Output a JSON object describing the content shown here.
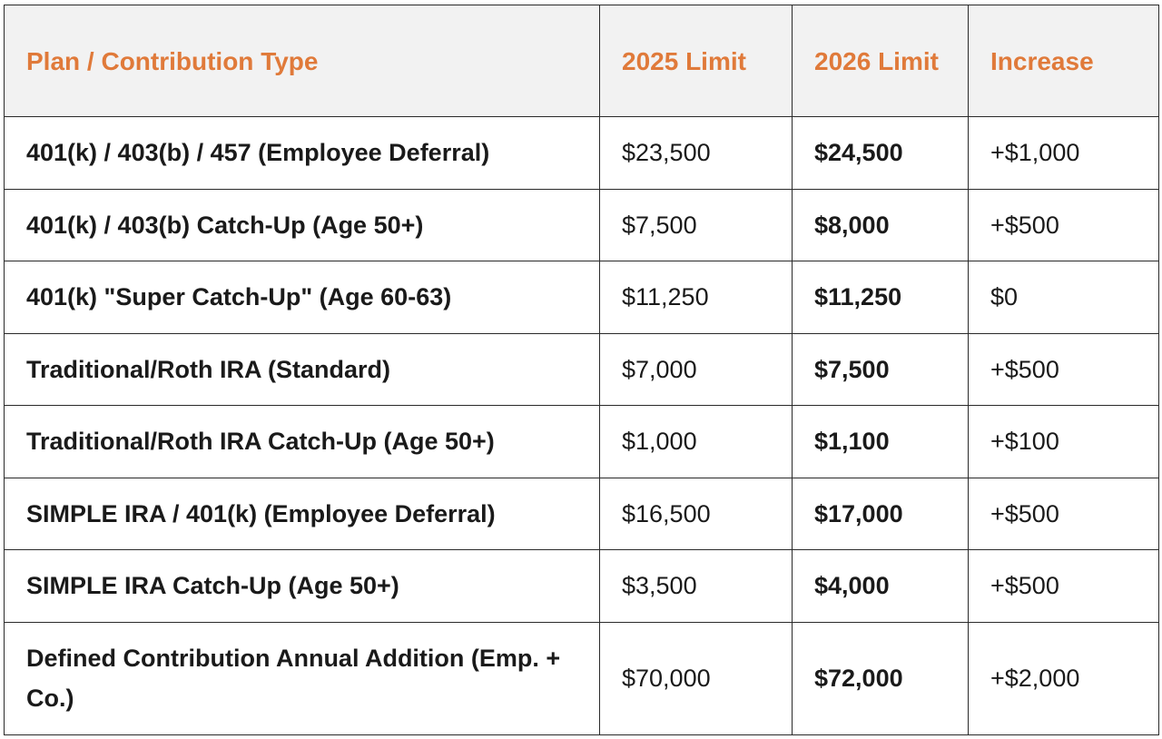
{
  "table": {
    "headers": {
      "plan": "Plan / Contribution Type",
      "limit_2025": "2025 Limit",
      "limit_2026": "2026 Limit",
      "increase": "Increase"
    },
    "rows": [
      {
        "plan": "401(k) / 403(b) / 457 (Employee Deferral)",
        "limit_2025": "$23,500",
        "limit_2026": "$24,500",
        "increase": "+$1,000"
      },
      {
        "plan": "401(k) / 403(b) Catch-Up (Age 50+)",
        "limit_2025": "$7,500",
        "limit_2026": "$8,000",
        "increase": "+$500"
      },
      {
        "plan": "401(k) \"Super Catch-Up\" (Age 60-63)",
        "limit_2025": "$11,250",
        "limit_2026": "$11,250",
        "increase": "$0"
      },
      {
        "plan": "Traditional/Roth IRA (Standard)",
        "limit_2025": "$7,000",
        "limit_2026": "$7,500",
        "increase": "+$500"
      },
      {
        "plan": "Traditional/Roth IRA Catch-Up (Age 50+)",
        "limit_2025": "$1,000",
        "limit_2026": "$1,100",
        "increase": "+$100"
      },
      {
        "plan": "SIMPLE IRA / 401(k) (Employee Deferral)",
        "limit_2025": "$16,500",
        "limit_2026": "$17,000",
        "increase": "+$500"
      },
      {
        "plan": "SIMPLE IRA Catch-Up (Age 50+)",
        "limit_2025": "$3,500",
        "limit_2026": "$4,000",
        "increase": "+$500"
      },
      {
        "plan": "Defined Contribution Annual Addition (Emp. + Co.)",
        "limit_2025": "$70,000",
        "limit_2026": "$72,000",
        "increase": "+$2,000"
      }
    ]
  },
  "colors": {
    "header_text": "#e07a3a",
    "header_background": "#f2f2f2",
    "border": "#2a2a2a"
  }
}
